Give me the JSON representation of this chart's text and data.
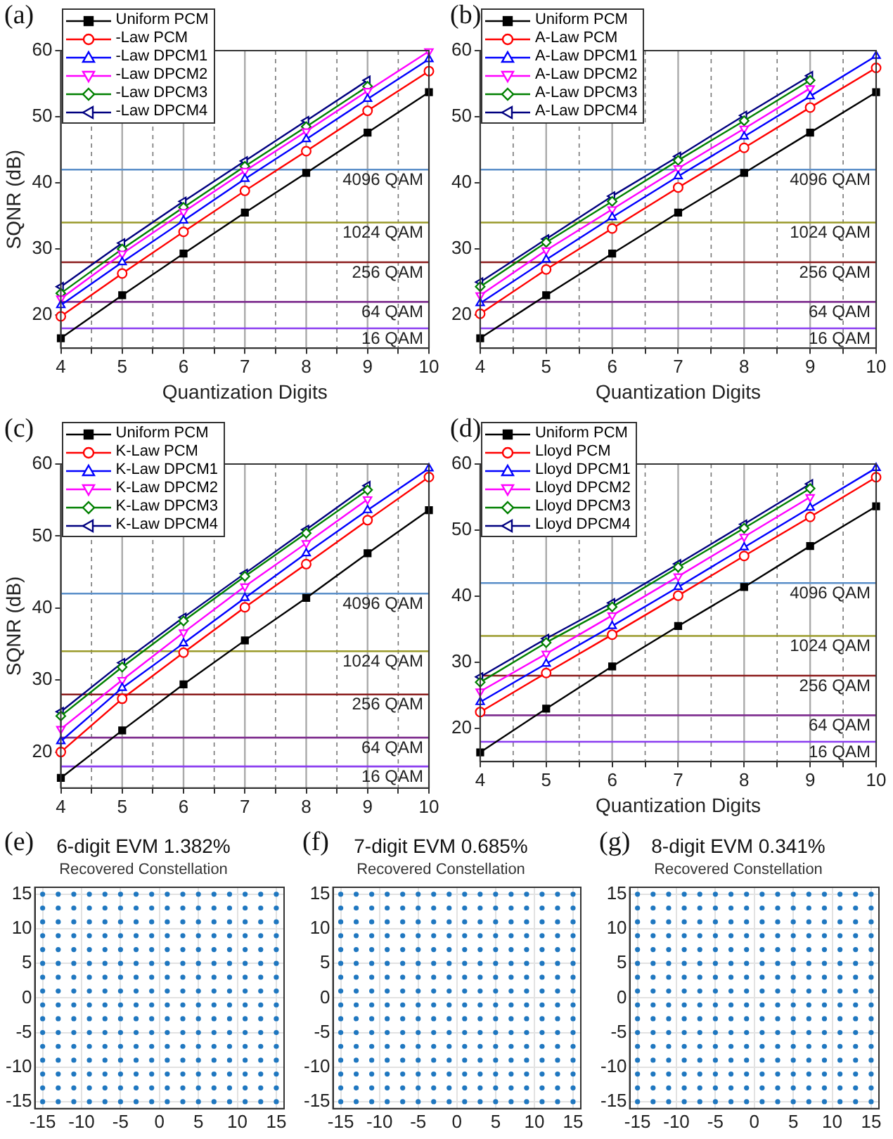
{
  "chart_data": [
    {
      "type": "line",
      "annotations": [
        "(a)"
      ],
      "xlabel": "Quantization Digits",
      "ylabel": "SQNR (dB)",
      "x": [
        4,
        5,
        6,
        7,
        8,
        9,
        10
      ],
      "xlim": [
        4,
        10
      ],
      "ylim": [
        15,
        60
      ],
      "xticks": [
        4,
        {
          "value": 4.5,
          "label": null
        },
        5,
        {
          "value": 5.5,
          "label": null
        },
        6,
        {
          "value": 6.5,
          "label": null
        },
        7,
        {
          "value": 7.5,
          "label": null
        },
        8,
        {
          "value": 8.5,
          "label": null
        },
        9,
        {
          "value": 9.5,
          "label": null
        },
        10
      ],
      "yticks": [
        20,
        30,
        40,
        50,
        60
      ],
      "grid": "x",
      "legend": "top left",
      "ref_lines": [
        {
          "axis": "y",
          "value": 42,
          "label": "4096 QAM",
          "color": "#5b8fc9"
        },
        {
          "axis": "y",
          "value": 34,
          "label": "1024 QAM",
          "color": "#9a9a2a"
        },
        {
          "axis": "y",
          "value": 28,
          "label": "256 QAM",
          "color": "#8b1c1c"
        },
        {
          "axis": "y",
          "value": 22,
          "label": "64 QAM",
          "color": "#7f2f8f"
        },
        {
          "axis": "y",
          "value": 18,
          "label": "16 QAM",
          "color": "#8a3cf0"
        }
      ],
      "series": [
        {
          "name": "Uniform PCM",
          "color": "#000000",
          "marker": "square",
          "values": [
            16.5,
            23,
            29.3,
            35.5,
            41.5,
            47.6,
            53.7
          ]
        },
        {
          "name": "-Law PCM",
          "color": "#ff0000",
          "marker": "circle",
          "values": [
            19.8,
            26.3,
            32.6,
            38.8,
            44.8,
            50.9,
            56.9
          ]
        },
        {
          "name": "-Law DPCM1",
          "color": "#0000ff",
          "marker": "triangle",
          "values": [
            21.5,
            28,
            34.3,
            40.6,
            46.6,
            52.7,
            58.7
          ]
        },
        {
          "name": "-Law DPCM2",
          "color": "#ff00ff",
          "marker": "triangle-down",
          "values": [
            22.5,
            29.3,
            35.6,
            41.8,
            47.8,
            53.9,
            59.9
          ]
        },
        {
          "name": "-Law DPCM3",
          "color": "#008000",
          "marker": "diamond",
          "values": [
            23.3,
            30,
            36.3,
            42.5,
            48.5,
            54.6,
            null
          ]
        },
        {
          "name": "-Law DPCM4",
          "color": "#000080",
          "marker": "triangle-left",
          "values": [
            24.3,
            30.9,
            37.2,
            43.3,
            49.4,
            55.5,
            null
          ]
        }
      ]
    },
    {
      "type": "line",
      "annotations": [
        "(b)"
      ],
      "xlabel": "Quantization Digits",
      "x": [
        4,
        5,
        6,
        7,
        8,
        9,
        10
      ],
      "xlim": [
        4,
        10
      ],
      "ylim": [
        15,
        60
      ],
      "xticks": [
        4,
        {
          "value": 4.5,
          "label": null
        },
        5,
        {
          "value": 5.5,
          "label": null
        },
        6,
        {
          "value": 6.5,
          "label": null
        },
        7,
        {
          "value": 7.5,
          "label": null
        },
        8,
        {
          "value": 8.5,
          "label": null
        },
        9,
        {
          "value": 9.5,
          "label": null
        },
        10
      ],
      "yticks": [
        20,
        30,
        40,
        50,
        60
      ],
      "grid": "x",
      "legend": "top left",
      "ref_lines": [
        {
          "axis": "y",
          "value": 42,
          "label": "4096 QAM",
          "color": "#5b8fc9"
        },
        {
          "axis": "y",
          "value": 34,
          "label": "1024 QAM",
          "color": "#9a9a2a"
        },
        {
          "axis": "y",
          "value": 28,
          "label": "256 QAM",
          "color": "#8b1c1c"
        },
        {
          "axis": "y",
          "value": 22,
          "label": "64 QAM",
          "color": "#7f2f8f"
        },
        {
          "axis": "y",
          "value": 18,
          "label": "16 QAM",
          "color": "#8a3cf0"
        }
      ],
      "series": [
        {
          "name": "Uniform PCM",
          "color": "#000000",
          "marker": "square",
          "values": [
            16.5,
            23,
            29.3,
            35.5,
            41.5,
            47.6,
            53.7
          ]
        },
        {
          "name": "A-Law PCM",
          "color": "#ff0000",
          "marker": "circle",
          "values": [
            20.2,
            26.9,
            33.1,
            39.3,
            45.3,
            51.4,
            57.4
          ]
        },
        {
          "name": "A-Law DPCM1",
          "color": "#0000ff",
          "marker": "triangle",
          "values": [
            21.8,
            28.4,
            34.8,
            41,
            47,
            53.1,
            59.2
          ]
        },
        {
          "name": "A-Law DPCM2",
          "color": "#ff00ff",
          "marker": "triangle-down",
          "values": [
            23,
            29.8,
            36,
            42.2,
            48.2,
            54.3,
            null
          ]
        },
        {
          "name": "A-Law DPCM3",
          "color": "#008000",
          "marker": "diamond",
          "values": [
            24.3,
            31,
            37.2,
            43.4,
            49.4,
            55.5,
            null
          ]
        },
        {
          "name": "A-Law DPCM4",
          "color": "#000080",
          "marker": "triangle-left",
          "values": [
            25,
            31.5,
            38,
            44,
            50.2,
            56.2,
            null
          ]
        }
      ]
    },
    {
      "type": "line",
      "annotations": [
        "(c)"
      ],
      "ylabel": "SQNR (dB)",
      "x": [
        4,
        5,
        6,
        7,
        8,
        9,
        10
      ],
      "xlim": [
        4,
        10
      ],
      "ylim": [
        15,
        60
      ],
      "xticks": [
        4,
        {
          "value": 4.5,
          "label": null
        },
        5,
        {
          "value": 5.5,
          "label": null
        },
        6,
        {
          "value": 6.5,
          "label": null
        },
        7,
        {
          "value": 7.5,
          "label": null
        },
        8,
        {
          "value": 8.5,
          "label": null
        },
        9,
        {
          "value": 9.5,
          "label": null
        },
        10
      ],
      "yticks": [
        20,
        30,
        40,
        50,
        60
      ],
      "grid": "x",
      "legend": "top left",
      "ref_lines": [
        {
          "axis": "y",
          "value": 42,
          "label": "4096 QAM",
          "color": "#5b8fc9"
        },
        {
          "axis": "y",
          "value": 34,
          "label": "1024 QAM",
          "color": "#9a9a2a"
        },
        {
          "axis": "y",
          "value": 28,
          "label": "256 QAM",
          "color": "#8b1c1c"
        },
        {
          "axis": "y",
          "value": 22,
          "label": "64 QAM",
          "color": "#7f2f8f"
        },
        {
          "axis": "y",
          "value": 18,
          "label": "16 QAM",
          "color": "#8a3cf0"
        }
      ],
      "series": [
        {
          "name": "Uniform PCM",
          "color": "#000000",
          "marker": "square",
          "values": [
            16.4,
            23,
            29.4,
            35.5,
            41.4,
            47.6,
            53.6
          ]
        },
        {
          "name": "K-Law PCM",
          "color": "#ff0000",
          "marker": "circle",
          "values": [
            20,
            27.4,
            33.8,
            40.1,
            46.1,
            52.2,
            58.2
          ]
        },
        {
          "name": "K-Law DPCM1",
          "color": "#0000ff",
          "marker": "triangle",
          "values": [
            21.5,
            28.9,
            35.1,
            41.4,
            47.6,
            53.6,
            59.4
          ]
        },
        {
          "name": "K-Law DPCM2",
          "color": "#ff00ff",
          "marker": "triangle-down",
          "values": [
            23.2,
            30,
            36.6,
            43,
            49,
            55.1,
            null
          ]
        },
        {
          "name": "K-Law DPCM3",
          "color": "#008000",
          "marker": "diamond",
          "values": [
            25,
            31.8,
            38.2,
            44.4,
            50.4,
            56.4,
            null
          ]
        },
        {
          "name": "K-Law DPCM4",
          "color": "#000080",
          "marker": "triangle-left",
          "values": [
            25.6,
            32.4,
            38.7,
            44.8,
            50.9,
            57,
            null
          ]
        }
      ]
    },
    {
      "type": "line",
      "annotations": [
        "(d)"
      ],
      "xlabel": "Quantization Digits",
      "x": [
        4,
        5,
        6,
        7,
        8,
        9,
        10
      ],
      "xlim": [
        4,
        10
      ],
      "ylim": [
        15,
        60
      ],
      "xticks": [
        4,
        {
          "value": 4.5,
          "label": null
        },
        5,
        {
          "value": 5.5,
          "label": null
        },
        6,
        {
          "value": 6.5,
          "label": null
        },
        7,
        {
          "value": 7.5,
          "label": null
        },
        8,
        {
          "value": 8.5,
          "label": null
        },
        9,
        {
          "value": 9.5,
          "label": null
        },
        10
      ],
      "yticks": [
        20,
        30,
        40,
        50,
        60
      ],
      "grid": "x",
      "legend": "top left",
      "ref_lines": [
        {
          "axis": "y",
          "value": 42,
          "label": "4096 QAM",
          "color": "#5b8fc9"
        },
        {
          "axis": "y",
          "value": 34,
          "label": "1024 QAM",
          "color": "#9a9a2a"
        },
        {
          "axis": "y",
          "value": 28,
          "label": "256 QAM",
          "color": "#8b1c1c"
        },
        {
          "axis": "y",
          "value": 22,
          "label": "64 QAM",
          "color": "#7f2f8f"
        },
        {
          "axis": "y",
          "value": 18,
          "label": "16 QAM",
          "color": "#8a3cf0"
        }
      ],
      "series": [
        {
          "name": "Uniform PCM",
          "color": "#000000",
          "marker": "square",
          "values": [
            16.4,
            23,
            29.4,
            35.5,
            41.4,
            47.6,
            53.6
          ]
        },
        {
          "name": "Lloyd PCM",
          "color": "#ff0000",
          "marker": "circle",
          "values": [
            22.5,
            28.4,
            34.2,
            40.1,
            46.1,
            52,
            58
          ]
        },
        {
          "name": "Lloyd DPCM1",
          "color": "#0000ff",
          "marker": "triangle",
          "values": [
            24,
            29.8,
            35.5,
            41.4,
            47.4,
            53.4,
            59.4
          ]
        },
        {
          "name": "Lloyd DPCM2",
          "color": "#ff00ff",
          "marker": "triangle-down",
          "values": [
            25.6,
            31.3,
            37.1,
            43,
            49,
            55,
            null
          ]
        },
        {
          "name": "Lloyd DPCM3",
          "color": "#008000",
          "marker": "diamond",
          "values": [
            27,
            33,
            38.4,
            44.4,
            50.3,
            56.3,
            null
          ]
        },
        {
          "name": "Lloyd DPCM4",
          "color": "#000080",
          "marker": "triangle-left",
          "values": [
            27.8,
            33.6,
            39,
            44.9,
            50.9,
            57,
            null
          ]
        }
      ]
    },
    {
      "type": "scatter",
      "annotations": [
        "(e)"
      ],
      "title": "6-digit EVM 1.382%",
      "subtitle": "Recovered Constellation",
      "xlim": [
        -16,
        16
      ],
      "ylim": [
        -16,
        16
      ],
      "xticks": [
        -15,
        -10,
        -5,
        0,
        5,
        10,
        15
      ],
      "yticks": [
        -15,
        -10,
        -5,
        0,
        5,
        10,
        15
      ],
      "grid": true,
      "marker": "circle",
      "color": "#1f77c0",
      "x": [
        -15,
        -13,
        -11,
        -9,
        -7,
        -5,
        -3,
        -1,
        1,
        3,
        5,
        7,
        9,
        11,
        13,
        15,
        -15,
        -13,
        -11,
        -9,
        -7,
        -5,
        -3,
        -1,
        1,
        3,
        5,
        7,
        9,
        11,
        13,
        15,
        -15,
        -13,
        -11,
        -9,
        -7,
        -5,
        -3,
        -1,
        1,
        3,
        5,
        7,
        9,
        11,
        13,
        15,
        -15,
        -13,
        -11,
        -9,
        -7,
        -5,
        -3,
        -1,
        1,
        3,
        5,
        7,
        9,
        11,
        13,
        15,
        -15,
        -13,
        -11,
        -9,
        -7,
        -5,
        -3,
        -1,
        1,
        3,
        5,
        7,
        9,
        11,
        13,
        15,
        -15,
        -13,
        -11,
        -9,
        -7,
        -5,
        -3,
        -1,
        1,
        3,
        5,
        7,
        9,
        11,
        13,
        15,
        -15,
        -13,
        -11,
        -9,
        -7,
        -5,
        -3,
        -1,
        1,
        3,
        5,
        7,
        9,
        11,
        13,
        15,
        -15,
        -13,
        -11,
        -9,
        -7,
        -5,
        -3,
        -1,
        1,
        3,
        5,
        7,
        9,
        11,
        13,
        15,
        -15,
        -13,
        -11,
        -9,
        -7,
        -5,
        -3,
        -1,
        1,
        3,
        5,
        7,
        9,
        11,
        13,
        15,
        -15,
        -13,
        -11,
        -9,
        -7,
        -5,
        -3,
        -1,
        1,
        3,
        5,
        7,
        9,
        11,
        13,
        15,
        -15,
        -13,
        -11,
        -9,
        -7,
        -5,
        -3,
        -1,
        1,
        3,
        5,
        7,
        9,
        11,
        13,
        15,
        -15,
        -13,
        -11,
        -9,
        -7,
        -5,
        -3,
        -1,
        1,
        3,
        5,
        7,
        9,
        11,
        13,
        15,
        -15,
        -13,
        -11,
        -9,
        -7,
        -5,
        -3,
        -1,
        1,
        3,
        5,
        7,
        9,
        11,
        13,
        15,
        -15,
        -13,
        -11,
        -9,
        -7,
        -5,
        -3,
        -1,
        1,
        3,
        5,
        7,
        9,
        11,
        13,
        15,
        -15,
        -13,
        -11,
        -9,
        -7,
        -5,
        -3,
        -1,
        1,
        3,
        5,
        7,
        9,
        11,
        13,
        15,
        -15,
        -13,
        -11,
        -9,
        -7,
        -5,
        -3,
        -1,
        1,
        3,
        5,
        7,
        9,
        11,
        13,
        15
      ],
      "values": [
        15,
        15,
        15,
        15,
        15,
        15,
        15,
        15,
        15,
        15,
        15,
        15,
        15,
        15,
        15,
        15,
        13,
        13,
        13,
        13,
        13,
        13,
        13,
        13,
        13,
        13,
        13,
        13,
        13,
        13,
        13,
        13,
        11,
        11,
        11,
        11,
        11,
        11,
        11,
        11,
        11,
        11,
        11,
        11,
        11,
        11,
        11,
        11,
        9,
        9,
        9,
        9,
        9,
        9,
        9,
        9,
        9,
        9,
        9,
        9,
        9,
        9,
        9,
        9,
        7,
        7,
        7,
        7,
        7,
        7,
        7,
        7,
        7,
        7,
        7,
        7,
        7,
        7,
        7,
        7,
        5,
        5,
        5,
        5,
        5,
        5,
        5,
        5,
        5,
        5,
        5,
        5,
        5,
        5,
        5,
        5,
        3,
        3,
        3,
        3,
        3,
        3,
        3,
        3,
        3,
        3,
        3,
        3,
        3,
        3,
        3,
        3,
        1,
        1,
        1,
        1,
        1,
        1,
        1,
        1,
        1,
        1,
        1,
        1,
        1,
        1,
        1,
        1,
        -1,
        -1,
        -1,
        -1,
        -1,
        -1,
        -1,
        -1,
        -1,
        -1,
        -1,
        -1,
        -1,
        -1,
        -1,
        -1,
        -3,
        -3,
        -3,
        -3,
        -3,
        -3,
        -3,
        -3,
        -3,
        -3,
        -3,
        -3,
        -3,
        -3,
        -3,
        -3,
        -5,
        -5,
        -5,
        -5,
        -5,
        -5,
        -5,
        -5,
        -5,
        -5,
        -5,
        -5,
        -5,
        -5,
        -5,
        -5,
        -7,
        -7,
        -7,
        -7,
        -7,
        -7,
        -7,
        -7,
        -7,
        -7,
        -7,
        -7,
        -7,
        -7,
        -7,
        -7,
        -9,
        -9,
        -9,
        -9,
        -9,
        -9,
        -9,
        -9,
        -9,
        -9,
        -9,
        -9,
        -9,
        -9,
        -9,
        -9,
        -11,
        -11,
        -11,
        -11,
        -11,
        -11,
        -11,
        -11,
        -11,
        -11,
        -11,
        -11,
        -11,
        -11,
        -11,
        -11,
        -13,
        -13,
        -13,
        -13,
        -13,
        -13,
        -13,
        -13,
        -13,
        -13,
        -13,
        -13,
        -13,
        -13,
        -13,
        -13,
        -15,
        -15,
        -15,
        -15,
        -15,
        -15,
        -15,
        -15,
        -15,
        -15,
        -15,
        -15,
        -15,
        -15,
        -15,
        -15
      ]
    },
    {
      "type": "scatter",
      "annotations": [
        "(f)"
      ],
      "title": "7-digit EVM 0.685%",
      "subtitle": "Recovered Constellation",
      "xlim": [
        -16,
        16
      ],
      "ylim": [
        -16,
        16
      ],
      "xticks": [
        -15,
        -10,
        -5,
        0,
        5,
        10,
        15
      ],
      "yticks": [
        -15,
        -10,
        -5,
        0,
        5,
        10,
        15
      ],
      "grid": true,
      "marker": "circle",
      "color": "#1f77c0",
      "x": [
        -15,
        -13,
        -11,
        -9,
        -7,
        -5,
        -3,
        -1,
        1,
        3,
        5,
        7,
        9,
        11,
        13,
        15,
        -15,
        -13,
        -11,
        -9,
        -7,
        -5,
        -3,
        -1,
        1,
        3,
        5,
        7,
        9,
        11,
        13,
        15,
        -15,
        -13,
        -11,
        -9,
        -7,
        -5,
        -3,
        -1,
        1,
        3,
        5,
        7,
        9,
        11,
        13,
        15,
        -15,
        -13,
        -11,
        -9,
        -7,
        -5,
        -3,
        -1,
        1,
        3,
        5,
        7,
        9,
        11,
        13,
        15,
        -15,
        -13,
        -11,
        -9,
        -7,
        -5,
        -3,
        -1,
        1,
        3,
        5,
        7,
        9,
        11,
        13,
        15,
        -15,
        -13,
        -11,
        -9,
        -7,
        -5,
        -3,
        -1,
        1,
        3,
        5,
        7,
        9,
        11,
        13,
        15,
        -15,
        -13,
        -11,
        -9,
        -7,
        -5,
        -3,
        -1,
        1,
        3,
        5,
        7,
        9,
        11,
        13,
        15,
        -15,
        -13,
        -11,
        -9,
        -7,
        -5,
        -3,
        -1,
        1,
        3,
        5,
        7,
        9,
        11,
        13,
        15,
        -15,
        -13,
        -11,
        -9,
        -7,
        -5,
        -3,
        -1,
        1,
        3,
        5,
        7,
        9,
        11,
        13,
        15,
        -15,
        -13,
        -11,
        -9,
        -7,
        -5,
        -3,
        -1,
        1,
        3,
        5,
        7,
        9,
        11,
        13,
        15,
        -15,
        -13,
        -11,
        -9,
        -7,
        -5,
        -3,
        -1,
        1,
        3,
        5,
        7,
        9,
        11,
        13,
        15,
        -15,
        -13,
        -11,
        -9,
        -7,
        -5,
        -3,
        -1,
        1,
        3,
        5,
        7,
        9,
        11,
        13,
        15,
        -15,
        -13,
        -11,
        -9,
        -7,
        -5,
        -3,
        -1,
        1,
        3,
        5,
        7,
        9,
        11,
        13,
        15,
        -15,
        -13,
        -11,
        -9,
        -7,
        -5,
        -3,
        -1,
        1,
        3,
        5,
        7,
        9,
        11,
        13,
        15,
        -15,
        -13,
        -11,
        -9,
        -7,
        -5,
        -3,
        -1,
        1,
        3,
        5,
        7,
        9,
        11,
        13,
        15,
        -15,
        -13,
        -11,
        -9,
        -7,
        -5,
        -3,
        -1,
        1,
        3,
        5,
        7,
        9,
        11,
        13,
        15
      ],
      "values": [
        15,
        15,
        15,
        15,
        15,
        15,
        15,
        15,
        15,
        15,
        15,
        15,
        15,
        15,
        15,
        15,
        13,
        13,
        13,
        13,
        13,
        13,
        13,
        13,
        13,
        13,
        13,
        13,
        13,
        13,
        13,
        13,
        11,
        11,
        11,
        11,
        11,
        11,
        11,
        11,
        11,
        11,
        11,
        11,
        11,
        11,
        11,
        11,
        9,
        9,
        9,
        9,
        9,
        9,
        9,
        9,
        9,
        9,
        9,
        9,
        9,
        9,
        9,
        9,
        7,
        7,
        7,
        7,
        7,
        7,
        7,
        7,
        7,
        7,
        7,
        7,
        7,
        7,
        7,
        7,
        5,
        5,
        5,
        5,
        5,
        5,
        5,
        5,
        5,
        5,
        5,
        5,
        5,
        5,
        5,
        5,
        3,
        3,
        3,
        3,
        3,
        3,
        3,
        3,
        3,
        3,
        3,
        3,
        3,
        3,
        3,
        3,
        1,
        1,
        1,
        1,
        1,
        1,
        1,
        1,
        1,
        1,
        1,
        1,
        1,
        1,
        1,
        1,
        -1,
        -1,
        -1,
        -1,
        -1,
        -1,
        -1,
        -1,
        -1,
        -1,
        -1,
        -1,
        -1,
        -1,
        -1,
        -1,
        -3,
        -3,
        -3,
        -3,
        -3,
        -3,
        -3,
        -3,
        -3,
        -3,
        -3,
        -3,
        -3,
        -3,
        -3,
        -3,
        -5,
        -5,
        -5,
        -5,
        -5,
        -5,
        -5,
        -5,
        -5,
        -5,
        -5,
        -5,
        -5,
        -5,
        -5,
        -5,
        -7,
        -7,
        -7,
        -7,
        -7,
        -7,
        -7,
        -7,
        -7,
        -7,
        -7,
        -7,
        -7,
        -7,
        -7,
        -7,
        -9,
        -9,
        -9,
        -9,
        -9,
        -9,
        -9,
        -9,
        -9,
        -9,
        -9,
        -9,
        -9,
        -9,
        -9,
        -9,
        -11,
        -11,
        -11,
        -11,
        -11,
        -11,
        -11,
        -11,
        -11,
        -11,
        -11,
        -11,
        -11,
        -11,
        -11,
        -11,
        -13,
        -13,
        -13,
        -13,
        -13,
        -13,
        -13,
        -13,
        -13,
        -13,
        -13,
        -13,
        -13,
        -13,
        -13,
        -13,
        -15,
        -15,
        -15,
        -15,
        -15,
        -15,
        -15,
        -15,
        -15,
        -15,
        -15,
        -15,
        -15,
        -15,
        -15,
        -15
      ]
    },
    {
      "type": "scatter",
      "annotations": [
        "(g)"
      ],
      "title": "8-digit EVM 0.341%",
      "subtitle": "Recovered Constellation",
      "xlim": [
        -16,
        16
      ],
      "ylim": [
        -16,
        16
      ],
      "xticks": [
        -15,
        -10,
        -5,
        0,
        5,
        10,
        15
      ],
      "yticks": [
        -15,
        -10,
        -5,
        0,
        5,
        10,
        15
      ],
      "grid": true,
      "marker": "circle",
      "color": "#1f77c0",
      "x": [
        -15,
        -13,
        -11,
        -9,
        -7,
        -5,
        -3,
        -1,
        1,
        3,
        5,
        7,
        9,
        11,
        13,
        15,
        -15,
        -13,
        -11,
        -9,
        -7,
        -5,
        -3,
        -1,
        1,
        3,
        5,
        7,
        9,
        11,
        13,
        15,
        -15,
        -13,
        -11,
        -9,
        -7,
        -5,
        -3,
        -1,
        1,
        3,
        5,
        7,
        9,
        11,
        13,
        15,
        -15,
        -13,
        -11,
        -9,
        -7,
        -5,
        -3,
        -1,
        1,
        3,
        5,
        7,
        9,
        11,
        13,
        15,
        -15,
        -13,
        -11,
        -9,
        -7,
        -5,
        -3,
        -1,
        1,
        3,
        5,
        7,
        9,
        11,
        13,
        15,
        -15,
        -13,
        -11,
        -9,
        -7,
        -5,
        -3,
        -1,
        1,
        3,
        5,
        7,
        9,
        11,
        13,
        15,
        -15,
        -13,
        -11,
        -9,
        -7,
        -5,
        -3,
        -1,
        1,
        3,
        5,
        7,
        9,
        11,
        13,
        15,
        -15,
        -13,
        -11,
        -9,
        -7,
        -5,
        -3,
        -1,
        1,
        3,
        5,
        7,
        9,
        11,
        13,
        15,
        -15,
        -13,
        -11,
        -9,
        -7,
        -5,
        -3,
        -1,
        1,
        3,
        5,
        7,
        9,
        11,
        13,
        15,
        -15,
        -13,
        -11,
        -9,
        -7,
        -5,
        -3,
        -1,
        1,
        3,
        5,
        7,
        9,
        11,
        13,
        15,
        -15,
        -13,
        -11,
        -9,
        -7,
        -5,
        -3,
        -1,
        1,
        3,
        5,
        7,
        9,
        11,
        13,
        15,
        -15,
        -13,
        -11,
        -9,
        -7,
        -5,
        -3,
        -1,
        1,
        3,
        5,
        7,
        9,
        11,
        13,
        15,
        -15,
        -13,
        -11,
        -9,
        -7,
        -5,
        -3,
        -1,
        1,
        3,
        5,
        7,
        9,
        11,
        13,
        15,
        -15,
        -13,
        -11,
        -9,
        -7,
        -5,
        -3,
        -1,
        1,
        3,
        5,
        7,
        9,
        11,
        13,
        15,
        -15,
        -13,
        -11,
        -9,
        -7,
        -5,
        -3,
        -1,
        1,
        3,
        5,
        7,
        9,
        11,
        13,
        15,
        -15,
        -13,
        -11,
        -9,
        -7,
        -5,
        -3,
        -1,
        1,
        3,
        5,
        7,
        9,
        11,
        13,
        15
      ],
      "values": [
        15,
        15,
        15,
        15,
        15,
        15,
        15,
        15,
        15,
        15,
        15,
        15,
        15,
        15,
        15,
        15,
        13,
        13,
        13,
        13,
        13,
        13,
        13,
        13,
        13,
        13,
        13,
        13,
        13,
        13,
        13,
        13,
        11,
        11,
        11,
        11,
        11,
        11,
        11,
        11,
        11,
        11,
        11,
        11,
        11,
        11,
        11,
        11,
        9,
        9,
        9,
        9,
        9,
        9,
        9,
        9,
        9,
        9,
        9,
        9,
        9,
        9,
        9,
        9,
        7,
        7,
        7,
        7,
        7,
        7,
        7,
        7,
        7,
        7,
        7,
        7,
        7,
        7,
        7,
        7,
        5,
        5,
        5,
        5,
        5,
        5,
        5,
        5,
        5,
        5,
        5,
        5,
        5,
        5,
        5,
        5,
        3,
        3,
        3,
        3,
        3,
        3,
        3,
        3,
        3,
        3,
        3,
        3,
        3,
        3,
        3,
        3,
        1,
        1,
        1,
        1,
        1,
        1,
        1,
        1,
        1,
        1,
        1,
        1,
        1,
        1,
        1,
        1,
        -1,
        -1,
        -1,
        -1,
        -1,
        -1,
        -1,
        -1,
        -1,
        -1,
        -1,
        -1,
        -1,
        -1,
        -1,
        -1,
        -3,
        -3,
        -3,
        -3,
        -3,
        -3,
        -3,
        -3,
        -3,
        -3,
        -3,
        -3,
        -3,
        -3,
        -3,
        -3,
        -5,
        -5,
        -5,
        -5,
        -5,
        -5,
        -5,
        -5,
        -5,
        -5,
        -5,
        -5,
        -5,
        -5,
        -5,
        -5,
        -7,
        -7,
        -7,
        -7,
        -7,
        -7,
        -7,
        -7,
        -7,
        -7,
        -7,
        -7,
        -7,
        -7,
        -7,
        -7,
        -9,
        -9,
        -9,
        -9,
        -9,
        -9,
        -9,
        -9,
        -9,
        -9,
        -9,
        -9,
        -9,
        -9,
        -9,
        -9,
        -11,
        -11,
        -11,
        -11,
        -11,
        -11,
        -11,
        -11,
        -11,
        -11,
        -11,
        -11,
        -11,
        -11,
        -11,
        -11,
        -13,
        -13,
        -13,
        -13,
        -13,
        -13,
        -13,
        -13,
        -13,
        -13,
        -13,
        -13,
        -13,
        -13,
        -13,
        -13,
        -15,
        -15,
        -15,
        -15,
        -15,
        -15,
        -15,
        -15,
        -15,
        -15,
        -15,
        -15,
        -15,
        -15,
        -15,
        -15
      ]
    }
  ]
}
